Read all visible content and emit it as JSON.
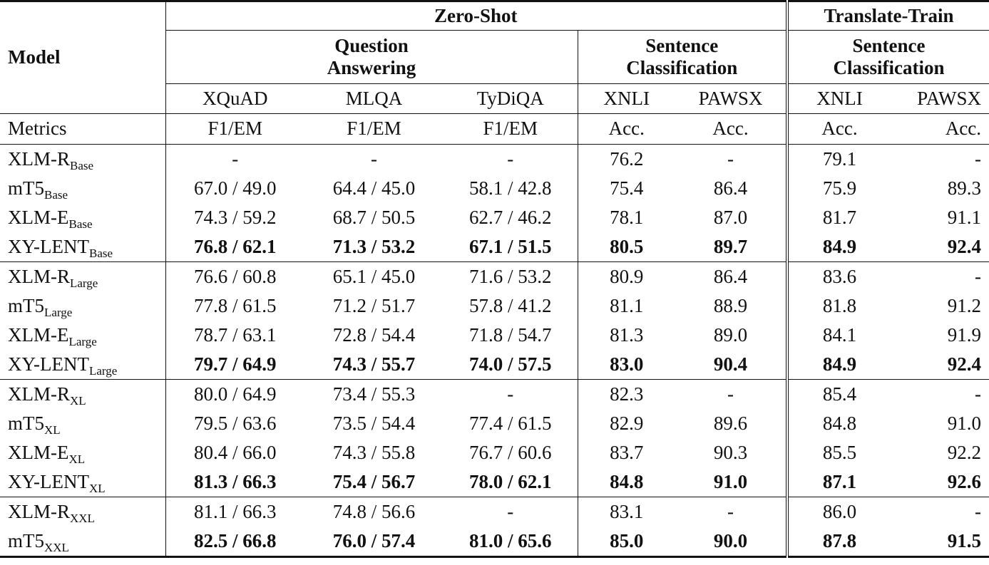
{
  "header": {
    "model": "Model",
    "zero_shot": "Zero-Shot",
    "translate_train": "Translate-Train",
    "qa_line1": "Question",
    "qa_line2": "Answering",
    "sc_line1": "Sentence",
    "sc_line2": "Classification",
    "tt_sc_line1": "Sentence",
    "tt_sc_line2": "Classification",
    "datasets": [
      "XQuAD",
      "MLQA",
      "TyDiQA",
      "XNLI",
      "PAWSX",
      "XNLI",
      "PAWSX"
    ],
    "metrics_label": "Metrics",
    "metrics": [
      "F1/EM",
      "F1/EM",
      "F1/EM",
      "Acc.",
      "Acc.",
      "Acc.",
      "Acc."
    ]
  },
  "groups": [
    {
      "rows": [
        {
          "name": "XLM-R",
          "size": "Base",
          "bold": false,
          "vals": [
            "-",
            "-",
            "-",
            "76.2",
            "-",
            "79.1",
            "-"
          ]
        },
        {
          "name": "mT5",
          "size": "Base",
          "bold": false,
          "vals": [
            "67.0 / 49.0",
            "64.4 / 45.0",
            "58.1 / 42.8",
            "75.4",
            "86.4",
            "75.9",
            "89.3"
          ]
        },
        {
          "name": "XLM-E",
          "size": "Base",
          "bold": false,
          "vals": [
            "74.3 / 59.2",
            "68.7 / 50.5",
            "62.7 / 46.2",
            "78.1",
            "87.0",
            "81.7",
            "91.1"
          ]
        },
        {
          "name": "XY-LENT",
          "size": "Base",
          "bold": true,
          "vals": [
            "76.8 / 62.1",
            "71.3 / 53.2",
            "67.1 / 51.5",
            "80.5",
            "89.7",
            "84.9",
            "92.4"
          ]
        }
      ]
    },
    {
      "rows": [
        {
          "name": "XLM-R",
          "size": "Large",
          "bold": false,
          "vals": [
            "76.6 / 60.8",
            "65.1 / 45.0",
            "71.6 / 53.2",
            "80.9",
            "86.4",
            "83.6",
            "-"
          ]
        },
        {
          "name": "mT5",
          "size": "Large",
          "bold": false,
          "vals": [
            "77.8 / 61.5",
            "71.2 / 51.7",
            "57.8 / 41.2",
            "81.1",
            "88.9",
            "81.8",
            "91.2"
          ]
        },
        {
          "name": "XLM-E",
          "size": "Large",
          "bold": false,
          "vals": [
            "78.7 / 63.1",
            "72.8 / 54.4",
            "71.8 / 54.7",
            "81.3",
            "89.0",
            "84.1",
            "91.9"
          ]
        },
        {
          "name": "XY-LENT",
          "size": "Large",
          "bold": true,
          "vals": [
            "79.7 / 64.9",
            "74.3 / 55.7",
            "74.0 / 57.5",
            "83.0",
            "90.4",
            "84.9",
            "92.4"
          ]
        }
      ]
    },
    {
      "rows": [
        {
          "name": "XLM-R",
          "size": "XL",
          "bold": false,
          "vals": [
            "80.0 / 64.9",
            "73.4 / 55.3",
            "-",
            "82.3",
            "-",
            "85.4",
            "-"
          ]
        },
        {
          "name": "mT5",
          "size": "XL",
          "bold": false,
          "vals": [
            "79.5 / 63.6",
            "73.5 / 54.4",
            "77.4 / 61.5",
            "82.9",
            "89.6",
            "84.8",
            "91.0"
          ]
        },
        {
          "name": "XLM-E",
          "size": "XL",
          "bold": false,
          "vals": [
            "80.4 / 66.0",
            "74.3 / 55.8",
            "76.7 / 60.6",
            "83.7",
            "90.3",
            "85.5",
            "92.2"
          ]
        },
        {
          "name": "XY-LENT",
          "size": "XL",
          "bold": true,
          "vals": [
            "81.3 / 66.3",
            "75.4 / 56.7",
            "78.0 / 62.1",
            "84.8",
            "91.0",
            "87.1",
            "92.6"
          ]
        }
      ]
    },
    {
      "rows": [
        {
          "name": "XLM-R",
          "size": "XXL",
          "bold": false,
          "vals": [
            "81.1 / 66.3",
            "74.8 / 56.6",
            "-",
            "83.1",
            "-",
            "86.0",
            "-"
          ]
        },
        {
          "name": "mT5",
          "size": "XXL",
          "bold": true,
          "vals": [
            "82.5 / 66.8",
            "76.0 / 57.4",
            "81.0 / 65.6",
            "85.0",
            "90.0",
            "87.8",
            "91.5"
          ]
        }
      ]
    }
  ]
}
